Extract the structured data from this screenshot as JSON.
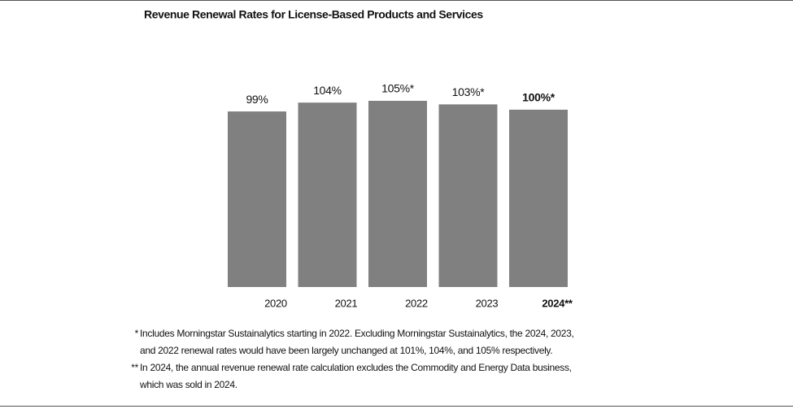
{
  "chart_data": {
    "type": "bar",
    "title": "Revenue Renewal Rates for License-Based Products and Services",
    "categories": [
      "2020",
      "2021",
      "2022",
      "2023",
      "2024**"
    ],
    "values": [
      99,
      104,
      105,
      103,
      100
    ],
    "value_labels": [
      "99%",
      "104%",
      "105%*",
      "103%*",
      "100%*"
    ],
    "color": "#808080",
    "footnotes": [
      {
        "marker": "*",
        "lines": [
          "Includes Morningstar Sustainalytics starting in 2022. Excluding Morningstar Sustainalytics, the 2024, 2023,",
          "and 2022 renewal rates would have been largely unchanged at 101%, 104%, and 105% respectively."
        ]
      },
      {
        "marker": "**",
        "lines": [
          "In 2024, the annual revenue renewal rate calculation excludes the Commodity and Energy Data business,",
          "which was sold in 2024."
        ]
      }
    ]
  }
}
